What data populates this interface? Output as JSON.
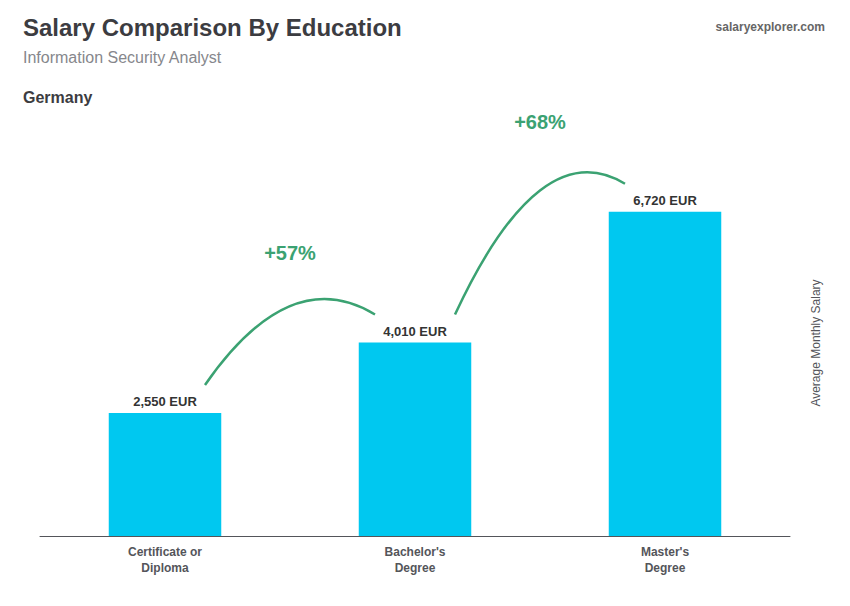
{
  "chart_data": {
    "type": "bar",
    "title": "Salary Comparison By Education",
    "subtitle": "Information Security Analyst",
    "ylabel": "Average Monthly Salary",
    "categories": [
      "Certificate or\nDiploma",
      "Bachelor's\nDegree",
      "Master's\nDegree"
    ],
    "values": [
      2550,
      4010,
      6720
    ],
    "value_labels": [
      "2,550 EUR",
      "4,010 EUR",
      "6,720 EUR"
    ],
    "data_labels": true,
    "color": "#00c8f0",
    "ylim": [
      0,
      8000
    ],
    "yticks": [
      0,
      2000,
      4000,
      6000,
      8000
    ],
    "tick_labels": "x",
    "grid": false,
    "annotations": [
      {
        "text": "Germany"
      },
      {
        "text": "salaryexplorer.com"
      },
      {
        "text": "+57%",
        "from": "Certificate or\nDiploma",
        "to": "Bachelor's\nDegree"
      },
      {
        "text": "+68%",
        "from": "Bachelor's\nDegree",
        "to": "Master's\nDegree"
      }
    ]
  }
}
